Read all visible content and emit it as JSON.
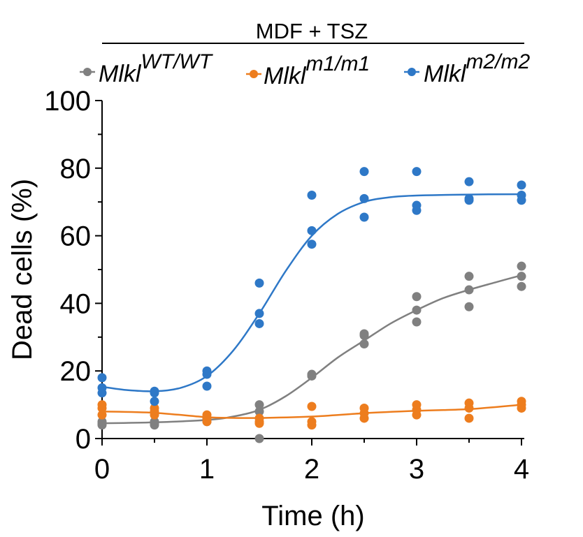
{
  "chart_data": {
    "type": "scatter",
    "title": "MDF + TSZ",
    "xlabel": "Time (h)",
    "ylabel": "Dead cells (%)",
    "xlim": [
      0,
      4
    ],
    "ylim": [
      0,
      100
    ],
    "xticks": [
      "0",
      "1",
      "2",
      "3",
      "4"
    ],
    "yticks": [
      "0",
      "20",
      "40",
      "60",
      "80",
      "100"
    ],
    "legend_position": "top",
    "series": [
      {
        "name": "Mlkl",
        "superscript": "WT/WT",
        "color": "#808080",
        "points": [
          [
            0,
            4
          ],
          [
            0,
            5
          ],
          [
            0,
            4.5
          ],
          [
            0.5,
            4
          ],
          [
            0.5,
            5
          ],
          [
            0.5,
            4.5
          ],
          [
            1,
            5
          ],
          [
            1,
            6
          ],
          [
            1,
            5.5
          ],
          [
            1.5,
            0
          ],
          [
            1.5,
            8
          ],
          [
            1.5,
            10
          ],
          [
            2,
            18.5
          ],
          [
            2,
            19
          ],
          [
            2,
            18.8
          ],
          [
            2.5,
            28
          ],
          [
            2.5,
            30.5
          ],
          [
            2.5,
            31
          ],
          [
            3,
            34.5
          ],
          [
            3,
            38
          ],
          [
            3,
            42
          ],
          [
            3.5,
            39
          ],
          [
            3.5,
            44
          ],
          [
            3.5,
            48
          ],
          [
            4,
            45
          ],
          [
            4,
            48
          ],
          [
            4,
            51
          ]
        ],
        "fit": [
          [
            0,
            4.5
          ],
          [
            0.5,
            4.8
          ],
          [
            1,
            5.5
          ],
          [
            1.25,
            6.5
          ],
          [
            1.5,
            8.5
          ],
          [
            1.75,
            12.5
          ],
          [
            2,
            18
          ],
          [
            2.25,
            24
          ],
          [
            2.5,
            29
          ],
          [
            2.75,
            34
          ],
          [
            3,
            38
          ],
          [
            3.25,
            41.5
          ],
          [
            3.5,
            44
          ],
          [
            3.75,
            46.2
          ],
          [
            4,
            48.3
          ]
        ]
      },
      {
        "name": "Mlkl",
        "superscript": "m1/m1",
        "color": "#ED7D1E",
        "points": [
          [
            0,
            7
          ],
          [
            0,
            9
          ],
          [
            0,
            10
          ],
          [
            0.5,
            7
          ],
          [
            0.5,
            8
          ],
          [
            0.5,
            9
          ],
          [
            1,
            6
          ],
          [
            1,
            5
          ],
          [
            1,
            7
          ],
          [
            1.5,
            5
          ],
          [
            1.5,
            6
          ],
          [
            1.5,
            4.5
          ],
          [
            2,
            4
          ],
          [
            2,
            5
          ],
          [
            2,
            9.5
          ],
          [
            2.5,
            6
          ],
          [
            2.5,
            7.5
          ],
          [
            2.5,
            9
          ],
          [
            3,
            7
          ],
          [
            3,
            8.5
          ],
          [
            3,
            10
          ],
          [
            3.5,
            6
          ],
          [
            3.5,
            9
          ],
          [
            3.5,
            10.5
          ],
          [
            4,
            9
          ],
          [
            4,
            10
          ],
          [
            4,
            11
          ]
        ],
        "fit": [
          [
            0,
            8
          ],
          [
            0.5,
            7.6
          ],
          [
            1,
            6.3
          ],
          [
            1.25,
            6.1
          ],
          [
            1.5,
            6.1
          ],
          [
            2,
            6.5
          ],
          [
            2.5,
            7.5
          ],
          [
            3,
            8.2
          ],
          [
            3.5,
            8.7
          ],
          [
            4,
            10
          ]
        ]
      },
      {
        "name": "Mlkl",
        "superscript": "m2/m2",
        "color": "#2E78C7",
        "points": [
          [
            0,
            13.5
          ],
          [
            0,
            15
          ],
          [
            0,
            18
          ],
          [
            0.5,
            11
          ],
          [
            0.5,
            13.5
          ],
          [
            0.5,
            14
          ],
          [
            1,
            15.5
          ],
          [
            1,
            19
          ],
          [
            1,
            20
          ],
          [
            1.5,
            34
          ],
          [
            1.5,
            37
          ],
          [
            1.5,
            46
          ],
          [
            2,
            57.5
          ],
          [
            2,
            61.5
          ],
          [
            2,
            72
          ],
          [
            2.5,
            65.5
          ],
          [
            2.5,
            71
          ],
          [
            2.5,
            79
          ],
          [
            3,
            67.5
          ],
          [
            3,
            69
          ],
          [
            3,
            79
          ],
          [
            3.5,
            70.5
          ],
          [
            3.5,
            71
          ],
          [
            3.5,
            76
          ],
          [
            4,
            70.5
          ],
          [
            4,
            72
          ],
          [
            4,
            75
          ]
        ],
        "fit": [
          [
            0,
            15.3
          ],
          [
            0.25,
            14.3
          ],
          [
            0.5,
            14
          ],
          [
            0.75,
            15
          ],
          [
            1,
            18.5
          ],
          [
            1.25,
            26
          ],
          [
            1.5,
            37
          ],
          [
            1.75,
            49.5
          ],
          [
            2,
            60
          ],
          [
            2.25,
            66.5
          ],
          [
            2.5,
            70
          ],
          [
            2.75,
            71.4
          ],
          [
            3,
            71.9
          ],
          [
            3.5,
            72.2
          ],
          [
            4,
            72.3
          ]
        ]
      }
    ]
  }
}
